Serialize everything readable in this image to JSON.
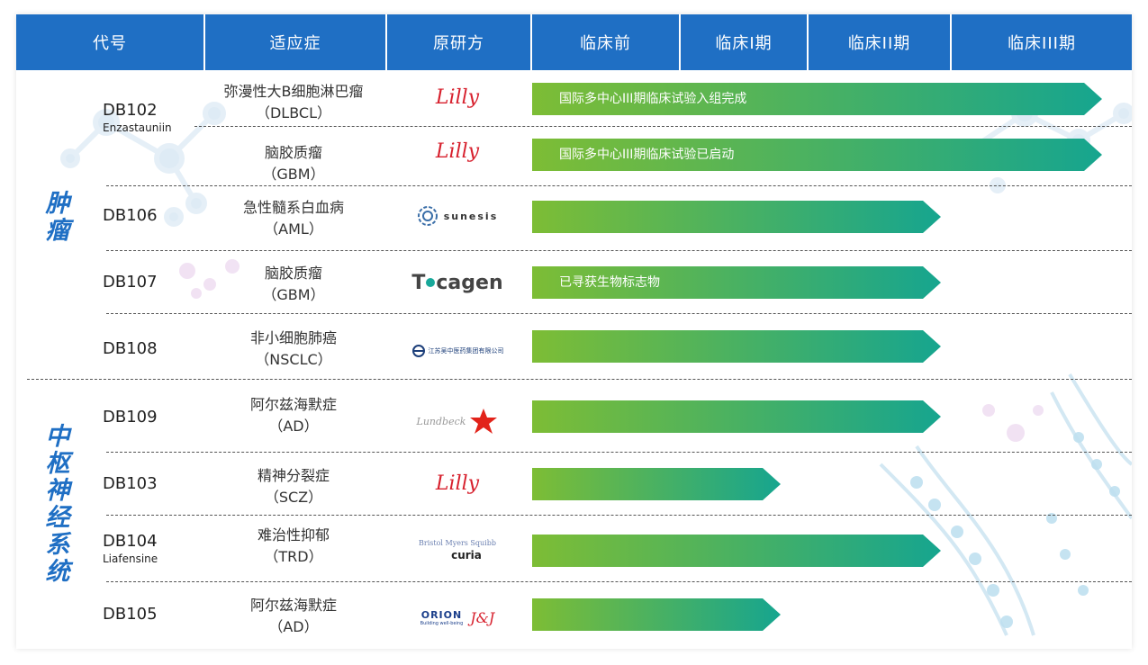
{
  "header": {
    "col_code": "代号",
    "col_indication": "适应症",
    "col_originator": "原研方",
    "col_preclinical": "临床前",
    "col_phase1": "临床I期",
    "col_phase2": "临床II期",
    "col_phase3": "临床III期"
  },
  "categories": {
    "oncology": [
      "肿",
      "瘤"
    ],
    "cns": [
      "中",
      "枢",
      "神",
      "经",
      "系",
      "统"
    ]
  },
  "rows": [
    {
      "code": "DB102",
      "sub": "Enzastauniin",
      "ind1": "弥漫性大B细胞淋巴瘤",
      "ind2": "（DLBCL）",
      "logo": "Lilly",
      "bar_text": "国际多中心III期临床试验入组完成",
      "stage": "临床III期"
    },
    {
      "code": "",
      "sub": "",
      "ind1": "脑胶质瘤",
      "ind2": "（GBM）",
      "logo": "Lilly",
      "bar_text": "国际多中心III期临床试验已启动",
      "stage": "临床III期"
    },
    {
      "code": "DB106",
      "sub": "",
      "ind1": "急性髓系白血病",
      "ind2": "（AML）",
      "logo": "sunesis",
      "bar_text": "",
      "stage": "临床II期"
    },
    {
      "code": "DB107",
      "sub": "",
      "ind1": "脑胶质瘤",
      "ind2": "（GBM）",
      "logo": "Tocagen",
      "bar_text": "已寻获生物标志物",
      "stage": "临床II期"
    },
    {
      "code": "DB108",
      "sub": "",
      "ind1": "非小细胞肺癌",
      "ind2": "（NSCLC）",
      "logo": "江苏吴中医药集团有限公司",
      "bar_text": "",
      "stage": "临床II期"
    },
    {
      "code": "DB109",
      "sub": "",
      "ind1": "阿尔兹海默症",
      "ind2": "（AD）",
      "logo": "Lundbeck",
      "bar_text": "",
      "stage": "临床II期"
    },
    {
      "code": "DB103",
      "sub": "",
      "ind1": "精神分裂症",
      "ind2": "（SCZ）",
      "logo": "Lilly",
      "bar_text": "",
      "stage": "临床I期"
    },
    {
      "code": "DB104",
      "sub": "Liafensine",
      "ind1": "难治性抑郁",
      "ind2": "（TRD）",
      "logo": "Bristol Myers Squibb / curia",
      "bar_text": "",
      "stage": "临床II期"
    },
    {
      "code": "DB105",
      "sub": "",
      "ind1": "阿尔兹海默症",
      "ind2": "（AD）",
      "logo": "ORION / J&J",
      "bar_text": "",
      "stage": "临床I期"
    }
  ],
  "logos": {
    "lilly": "Lilly",
    "sunesis": "sunesis",
    "tocagen_a": "T",
    "tocagen_b": "cagen",
    "wuzhong": "江苏吴中医药集团有限公司",
    "lundbeck": "Lundbeck",
    "bms": "Bristol Myers Squibb",
    "curia": "curia",
    "orion": "ORION",
    "orion_tag": "Building well-being",
    "jnj": "J&J"
  },
  "colors": {
    "header_bg": "#1f6fc4",
    "bar_start": "#7dbd35",
    "bar_end": "#16a58f",
    "category": "#1f6fc4",
    "lilly": "#d7202d"
  }
}
